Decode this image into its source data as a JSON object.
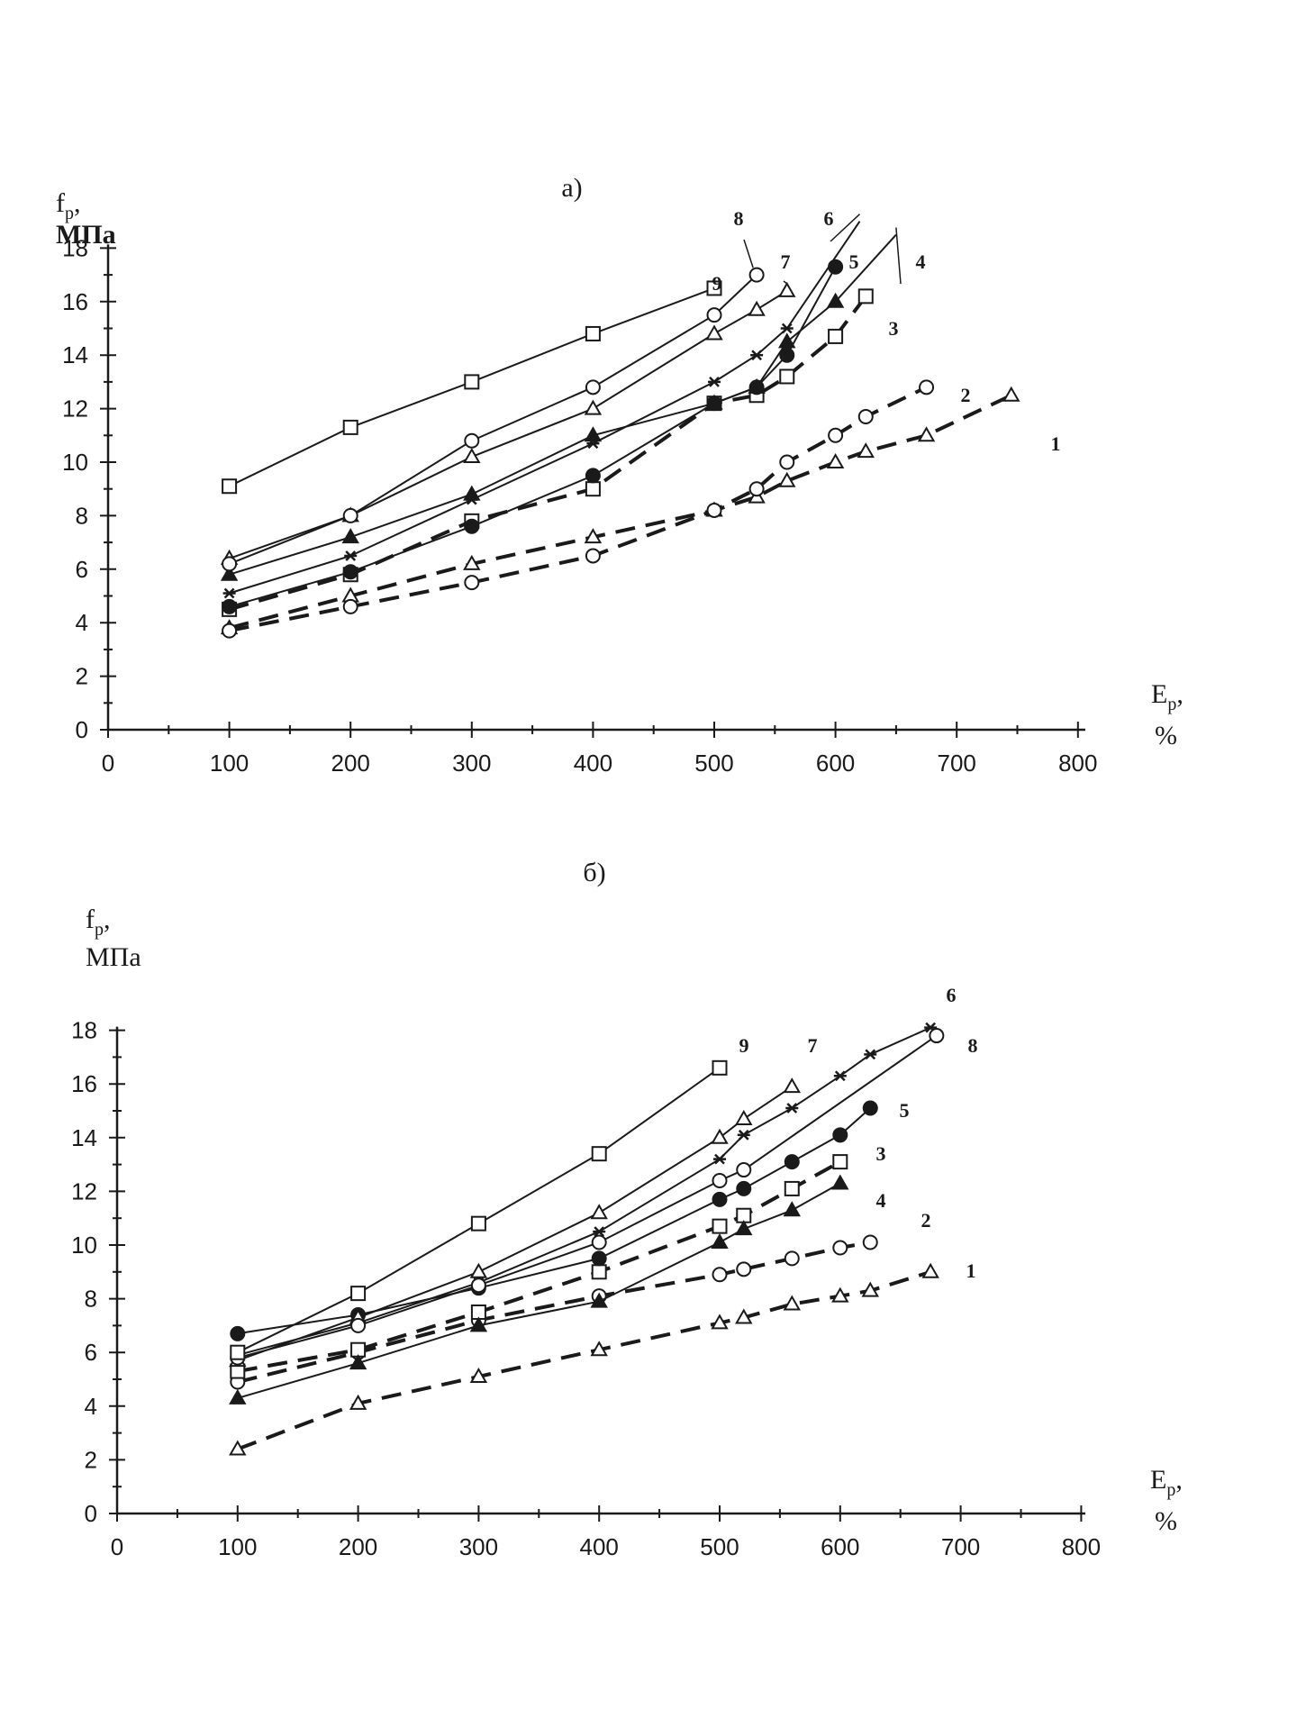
{
  "chart_data": [
    {
      "type": "line",
      "title": "а)",
      "ylabel_symbol": "f",
      "ylabel_sub": "p",
      "ylabel_unit": "МПа",
      "xlabel_symbol": "E",
      "xlabel_sub": "p",
      "xlabel_unit": "%",
      "xlim": [
        0,
        800
      ],
      "ylim": [
        0,
        18
      ],
      "xticks": [
        "0",
        "100",
        "200",
        "300",
        "400",
        "500",
        "600",
        "700",
        "800"
      ],
      "yticks": [
        "0",
        "2",
        "4",
        "6",
        "8",
        "10",
        "12",
        "14",
        "16",
        "18"
      ],
      "grid": false,
      "series": [
        {
          "name": "1",
          "marker": "triangle-open",
          "dashed": true,
          "points": [
            [
              100,
              3.8
            ],
            [
              200,
              5.0
            ],
            [
              300,
              6.2
            ],
            [
              400,
              7.2
            ],
            [
              500,
              8.2
            ],
            [
              535,
              8.7
            ],
            [
              560,
              9.3
            ],
            [
              600,
              10.0
            ],
            [
              625,
              10.4
            ],
            [
              675,
              11.0
            ],
            [
              745,
              12.5
            ]
          ]
        },
        {
          "name": "2",
          "marker": "circle-open",
          "dashed": true,
          "points": [
            [
              100,
              3.7
            ],
            [
              200,
              4.6
            ],
            [
              300,
              5.5
            ],
            [
              400,
              6.5
            ],
            [
              500,
              8.2
            ],
            [
              535,
              9.0
            ],
            [
              560,
              10.0
            ],
            [
              600,
              11.0
            ],
            [
              625,
              11.7
            ],
            [
              675,
              12.8
            ]
          ]
        },
        {
          "name": "3",
          "marker": "square-open",
          "dashed": true,
          "points": [
            [
              100,
              4.5
            ],
            [
              200,
              5.8
            ],
            [
              300,
              7.8
            ],
            [
              400,
              9.0
            ],
            [
              500,
              12.2
            ],
            [
              535,
              12.5
            ],
            [
              560,
              13.2
            ],
            [
              600,
              14.7
            ],
            [
              625,
              16.2
            ]
          ]
        },
        {
          "name": "4",
          "marker": "triangle-filled",
          "dashed": false,
          "points": [
            [
              100,
              5.8
            ],
            [
              200,
              7.2
            ],
            [
              300,
              8.8
            ],
            [
              400,
              11.0
            ],
            [
              500,
              12.2
            ],
            [
              535,
              12.8
            ],
            [
              560,
              14.5
            ],
            [
              600,
              16.0
            ],
            [
              650,
              18.5
            ]
          ]
        },
        {
          "name": "5",
          "marker": "circle-filled",
          "dashed": false,
          "points": [
            [
              100,
              4.6
            ],
            [
              200,
              5.9
            ],
            [
              300,
              7.6
            ],
            [
              400,
              9.5
            ],
            [
              500,
              12.2
            ],
            [
              535,
              12.8
            ],
            [
              560,
              14.0
            ],
            [
              600,
              17.3
            ]
          ]
        },
        {
          "name": "6",
          "marker": "star",
          "dashed": false,
          "points": [
            [
              100,
              5.1
            ],
            [
              200,
              6.5
            ],
            [
              300,
              8.6
            ],
            [
              400,
              10.7
            ],
            [
              500,
              13.0
            ],
            [
              535,
              14.0
            ],
            [
              560,
              15.0
            ],
            [
              620,
              19.0
            ]
          ]
        },
        {
          "name": "7",
          "marker": "triangle-open",
          "dashed": false,
          "points": [
            [
              100,
              6.4
            ],
            [
              200,
              8.0
            ],
            [
              300,
              10.2
            ],
            [
              400,
              12.0
            ],
            [
              500,
              14.8
            ],
            [
              535,
              15.7
            ],
            [
              560,
              16.4
            ]
          ]
        },
        {
          "name": "8",
          "marker": "circle-open",
          "dashed": false,
          "points": [
            [
              100,
              6.2
            ],
            [
              200,
              8.0
            ],
            [
              300,
              10.8
            ],
            [
              400,
              12.8
            ],
            [
              500,
              15.5
            ],
            [
              535,
              17.0
            ]
          ]
        },
        {
          "name": "9",
          "marker": "square-open",
          "dashed": false,
          "points": [
            [
              100,
              9.1
            ],
            [
              200,
              11.3
            ],
            [
              300,
              13.0
            ],
            [
              400,
              14.8
            ],
            [
              500,
              16.5
            ]
          ]
        }
      ]
    },
    {
      "type": "line",
      "title": "б)",
      "ylabel_symbol": "f",
      "ylabel_sub": "p",
      "ylabel_unit": "МПа",
      "xlabel_symbol": "E",
      "xlabel_sub": "p",
      "xlabel_unit": "%",
      "xlim": [
        0,
        800
      ],
      "ylim": [
        0,
        18
      ],
      "xticks": [
        "0",
        "100",
        "200",
        "300",
        "400",
        "500",
        "600",
        "700",
        "800"
      ],
      "yticks": [
        "0",
        "2",
        "4",
        "6",
        "8",
        "10",
        "12",
        "14",
        "16",
        "18"
      ],
      "grid": false,
      "series": [
        {
          "name": "1",
          "marker": "triangle-open",
          "dashed": true,
          "points": [
            [
              100,
              2.4
            ],
            [
              200,
              4.1
            ],
            [
              300,
              5.1
            ],
            [
              400,
              6.1
            ],
            [
              500,
              7.1
            ],
            [
              520,
              7.3
            ],
            [
              560,
              7.8
            ],
            [
              600,
              8.1
            ],
            [
              625,
              8.3
            ],
            [
              675,
              9.0
            ]
          ]
        },
        {
          "name": "2",
          "marker": "circle-open",
          "dashed": true,
          "points": [
            [
              100,
              4.9
            ],
            [
              200,
              6.0
            ],
            [
              300,
              7.2
            ],
            [
              400,
              8.1
            ],
            [
              500,
              8.9
            ],
            [
              520,
              9.1
            ],
            [
              560,
              9.5
            ],
            [
              600,
              9.9
            ],
            [
              625,
              10.1
            ]
          ]
        },
        {
          "name": "3",
          "marker": "square-open",
          "dashed": true,
          "points": [
            [
              100,
              5.3
            ],
            [
              200,
              6.1
            ],
            [
              300,
              7.5
            ],
            [
              400,
              9.0
            ],
            [
              500,
              10.7
            ],
            [
              520,
              11.1
            ],
            [
              560,
              12.1
            ],
            [
              600,
              13.1
            ]
          ]
        },
        {
          "name": "4",
          "marker": "triangle-filled",
          "dashed": false,
          "points": [
            [
              100,
              4.3
            ],
            [
              200,
              5.6
            ],
            [
              300,
              7.0
            ],
            [
              400,
              7.9
            ],
            [
              500,
              10.1
            ],
            [
              520,
              10.6
            ],
            [
              560,
              11.3
            ],
            [
              600,
              12.3
            ]
          ]
        },
        {
          "name": "5",
          "marker": "circle-filled",
          "dashed": false,
          "points": [
            [
              100,
              6.7
            ],
            [
              200,
              7.4
            ],
            [
              300,
              8.4
            ],
            [
              400,
              9.5
            ],
            [
              500,
              11.7
            ],
            [
              520,
              12.1
            ],
            [
              560,
              13.1
            ],
            [
              600,
              14.1
            ],
            [
              625,
              15.1
            ]
          ]
        },
        {
          "name": "6",
          "marker": "star",
          "dashed": false,
          "points": [
            [
              100,
              5.9
            ],
            [
              200,
              7.1
            ],
            [
              300,
              8.6
            ],
            [
              400,
              10.5
            ],
            [
              500,
              13.2
            ],
            [
              520,
              14.1
            ],
            [
              560,
              15.1
            ],
            [
              600,
              16.3
            ],
            [
              625,
              17.1
            ],
            [
              675,
              18.1
            ]
          ]
        },
        {
          "name": "7",
          "marker": "triangle-open",
          "dashed": false,
          "points": [
            [
              100,
              5.7
            ],
            [
              200,
              7.3
            ],
            [
              300,
              9.0
            ],
            [
              400,
              11.2
            ],
            [
              500,
              14.0
            ],
            [
              520,
              14.7
            ],
            [
              560,
              15.9
            ]
          ]
        },
        {
          "name": "8",
          "marker": "circle-open",
          "dashed": false,
          "points": [
            [
              100,
              5.8
            ],
            [
              200,
              7.0
            ],
            [
              300,
              8.5
            ],
            [
              400,
              10.1
            ],
            [
              500,
              12.4
            ],
            [
              520,
              12.8
            ],
            [
              680,
              17.8
            ]
          ]
        },
        {
          "name": "9",
          "marker": "square-open",
          "dashed": false,
          "points": [
            [
              100,
              6.0
            ],
            [
              200,
              8.2
            ],
            [
              300,
              10.8
            ],
            [
              400,
              13.4
            ],
            [
              500,
              16.6
            ]
          ]
        }
      ]
    }
  ]
}
